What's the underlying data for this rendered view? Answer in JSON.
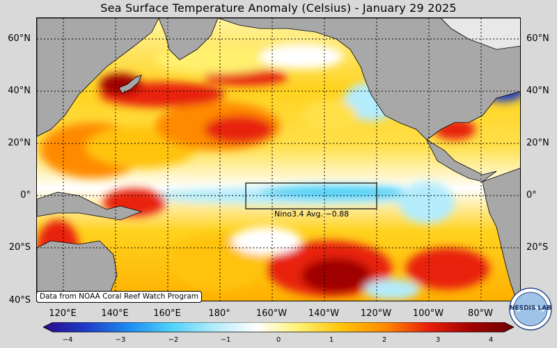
{
  "title": "Sea Surface Temperature Anomaly (Celsius) - January 29 2025",
  "map": {
    "lat_labels": [
      "60°N",
      "40°N",
      "20°N",
      "0°",
      "20°S",
      "40°S"
    ],
    "lon_labels": [
      "120°E",
      "140°E",
      "160°E",
      "180°",
      "160°W",
      "140°W",
      "120°W",
      "100°W",
      "80°W"
    ],
    "nino_box": {
      "label": "Nino3.4 Avg.",
      "value": "−0.88"
    },
    "colors": {
      "land": "#a8a8a8",
      "ice": "#e8e8e8",
      "cold_strong": "#1e3cc8",
      "cold": "#28b4f0",
      "cold_light": "#b4ecfc",
      "neutral": "#ffffff",
      "warm_light": "#fff06e",
      "warm": "#ffc30a",
      "warm_mid": "#ff8a00",
      "hot": "#e8200a",
      "hot_strong": "#a00000"
    }
  },
  "credit": "Data from NOAA Coral Reef Watch Program",
  "colorbar": {
    "ticks": [
      "−4",
      "−3",
      "−2",
      "−1",
      "0",
      "1",
      "2",
      "3",
      "4"
    ],
    "range": [
      -4,
      4
    ],
    "stops": [
      "#2a0a8c",
      "#1e3cc8",
      "#1e8cf0",
      "#50d2f8",
      "#b4ecfc",
      "#ffffff",
      "#fff06e",
      "#ffc30a",
      "#ff8a00",
      "#e8200a",
      "#a00000",
      "#6e0000"
    ]
  },
  "logo": {
    "text": "NESDIS LAB"
  }
}
